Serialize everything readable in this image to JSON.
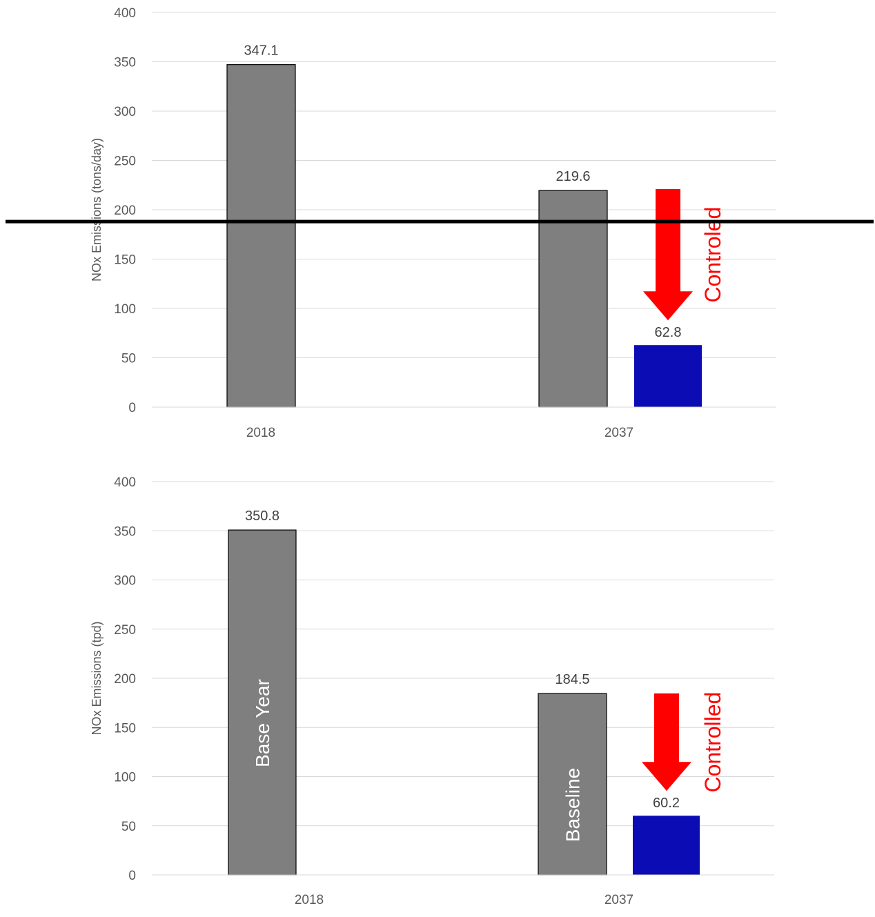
{
  "colors": {
    "baseline_bar": "#7f7f7f",
    "controlled_bar": "#0c0cb4",
    "arrow": "#ff0000",
    "grid": "#d9d9d9",
    "threshold_line": "#000000"
  },
  "chart_data": [
    {
      "type": "bar",
      "categories": [
        "2018",
        "2037"
      ],
      "ylabel": "NOx Emissions (tons/day)",
      "ylim": [
        0,
        400
      ],
      "yticks": [
        0,
        50,
        100,
        150,
        200,
        250,
        300,
        350,
        400
      ],
      "grid": true,
      "series": [
        {
          "values": [
            347.1,
            219.6
          ],
          "data_labels": [
            "347.1",
            "219.6"
          ],
          "bar_labels": [
            "",
            ""
          ]
        },
        {
          "values": [
            null,
            62.8
          ],
          "data_labels": [
            "",
            "62.8"
          ],
          "bar_labels": [
            "",
            ""
          ]
        }
      ],
      "annotation": {
        "text": "Controled",
        "type": "arrow-down"
      },
      "threshold_line": {
        "y": 188
      }
    },
    {
      "type": "bar",
      "categories": [
        "2018",
        "2037"
      ],
      "ylabel": "NOx Emissions (tpd)",
      "ylim": [
        0,
        400
      ],
      "yticks": [
        0,
        50,
        100,
        150,
        200,
        250,
        300,
        350,
        400
      ],
      "grid": true,
      "series": [
        {
          "values": [
            350.8,
            184.5
          ],
          "data_labels": [
            "350.8",
            "184.5"
          ],
          "bar_labels": [
            "Base Year",
            "Baseline"
          ]
        },
        {
          "values": [
            null,
            60.2
          ],
          "data_labels": [
            "",
            "60.2"
          ],
          "bar_labels": [
            "",
            ""
          ]
        }
      ],
      "annotation": {
        "text": "Controlled",
        "type": "arrow-down"
      }
    }
  ]
}
